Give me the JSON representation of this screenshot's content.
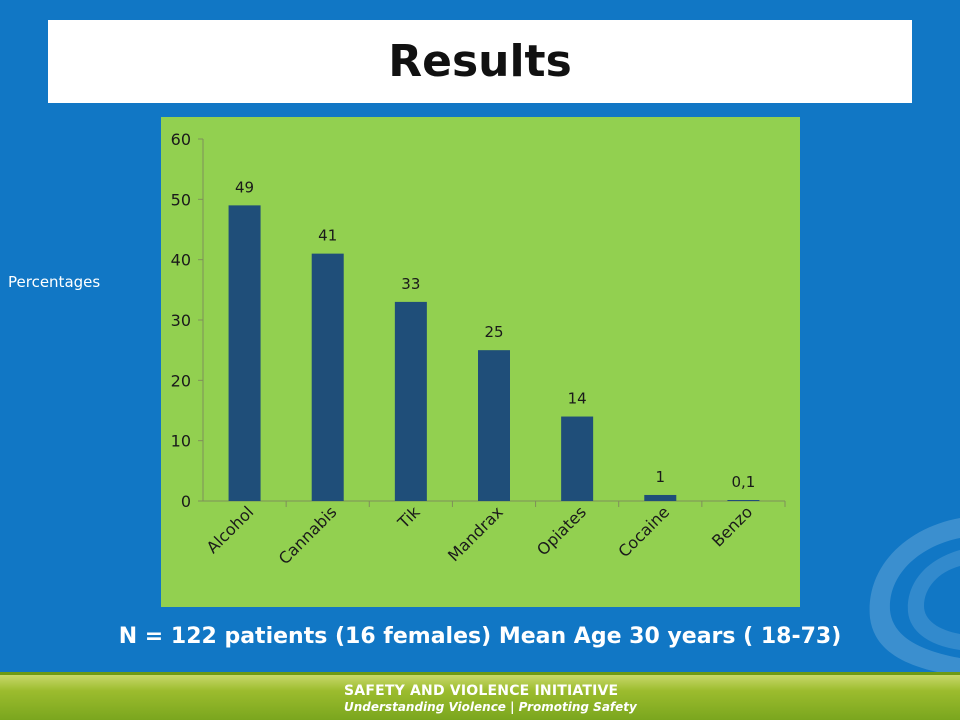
{
  "slide": {
    "title": "Results",
    "side_label": "Percentages",
    "caption": "N = 122 patients (16 females) Mean Age 30 years ( 18-73)"
  },
  "footer": {
    "line1": "SAFETY AND VIOLENCE INITIATIVE",
    "line2": "Understanding Violence  |  Promoting Safety"
  },
  "colors": {
    "background": "#1177c5",
    "plot_background": "#92d050",
    "bar": "#1f4e79",
    "footer": "#9cbc2e"
  },
  "chart_data": {
    "type": "bar",
    "title": "",
    "xlabel": "",
    "ylabel": "Percentages",
    "categories": [
      "Alcohol",
      "Cannabis",
      "Tik",
      "Mandrax",
      "Opiates",
      "Cocaine",
      "Benzo"
    ],
    "values": [
      49,
      41,
      33,
      25,
      14,
      1,
      0.1
    ],
    "data_labels": [
      "49",
      "41",
      "33",
      "25",
      "14",
      "1",
      "0,1"
    ],
    "ylim": [
      0,
      60
    ],
    "yticks": [
      0,
      10,
      20,
      30,
      40,
      50,
      60
    ],
    "grid": false,
    "legend": "none"
  }
}
